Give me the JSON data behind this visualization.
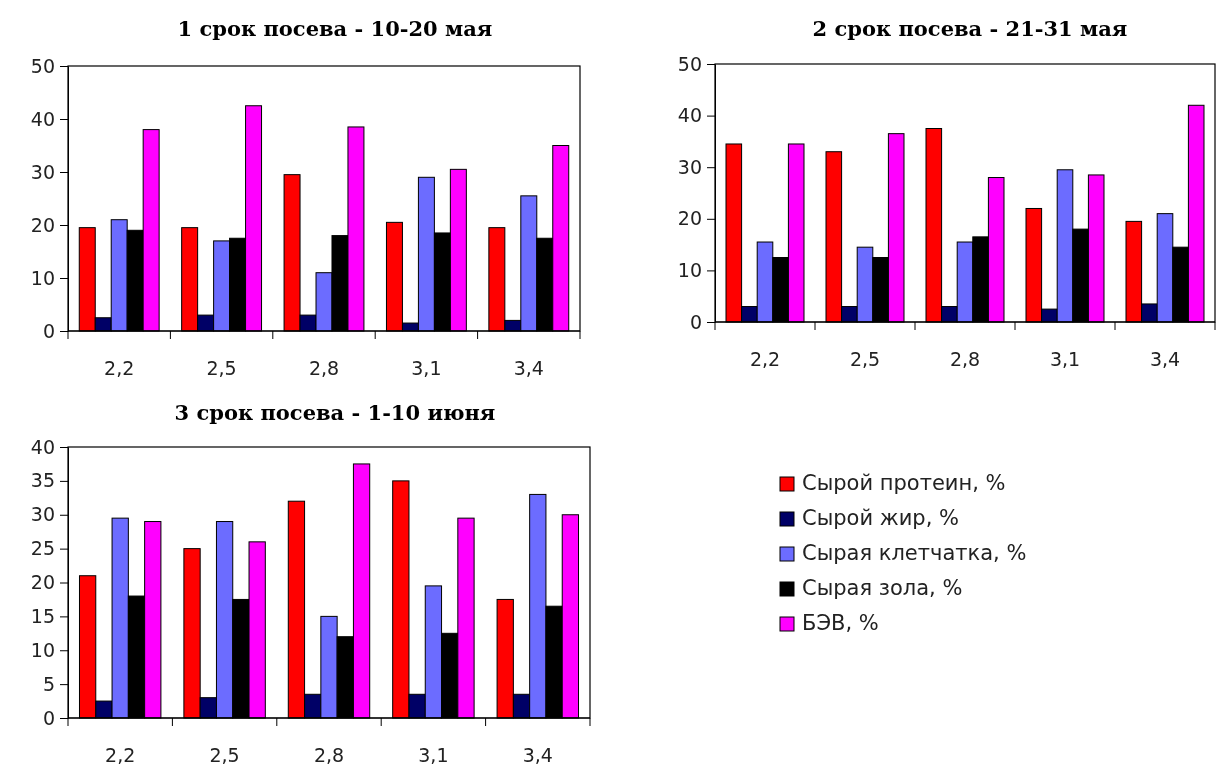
{
  "chart_data": [
    {
      "type": "bar",
      "title": "1 срок посева - 10-20 мая",
      "categories": [
        "2,2",
        "2,5",
        "2,8",
        "3,1",
        "3,4"
      ],
      "ylim": [
        0,
        50
      ],
      "yticks": [
        0,
        10,
        20,
        30,
        40,
        50
      ],
      "legend": false,
      "series": [
        {
          "color": "#ff0000",
          "values": [
            19.5,
            19.5,
            29.5,
            20.5,
            19.5
          ]
        },
        {
          "color": "#000066",
          "values": [
            2.5,
            3,
            3,
            1.5,
            2
          ]
        },
        {
          "color": "#6c6cff",
          "values": [
            21,
            17,
            11,
            29,
            25.5
          ]
        },
        {
          "color": "#000000",
          "values": [
            19,
            17.5,
            18,
            18.5,
            17.5
          ]
        },
        {
          "color": "#ff00ff",
          "values": [
            38,
            42.5,
            38.5,
            30.5,
            35
          ]
        }
      ]
    },
    {
      "type": "bar",
      "title": "2 срок посева - 21-31 мая",
      "categories": [
        "2,2",
        "2,5",
        "2,8",
        "3,1",
        "3,4"
      ],
      "ylim": [
        0,
        50
      ],
      "yticks": [
        0,
        10,
        20,
        30,
        40,
        50
      ],
      "legend": false,
      "series": [
        {
          "color": "#ff0000",
          "values": [
            34.5,
            33,
            37.5,
            22,
            19.5
          ]
        },
        {
          "color": "#000066",
          "values": [
            3,
            3,
            3,
            2.5,
            3.5
          ]
        },
        {
          "color": "#6c6cff",
          "values": [
            15.5,
            14.5,
            15.5,
            29.5,
            21
          ]
        },
        {
          "color": "#000000",
          "values": [
            12.5,
            12.5,
            16.5,
            18,
            14.5
          ]
        },
        {
          "color": "#ff00ff",
          "values": [
            34.5,
            36.5,
            28,
            28.5,
            42
          ]
        }
      ]
    },
    {
      "type": "bar",
      "title": "3 срок посева - 1-10 июня",
      "categories": [
        "2,2",
        "2,5",
        "2,8",
        "3,1",
        "3,4"
      ],
      "ylim": [
        0,
        40
      ],
      "yticks": [
        0,
        5,
        10,
        15,
        20,
        25,
        30,
        35,
        40
      ],
      "legend": "right",
      "series": [
        {
          "name": "Сырой протеин, %",
          "color": "#ff0000",
          "values": [
            21,
            25,
            32,
            35,
            17.5
          ]
        },
        {
          "name": "Сырой жир, %",
          "color": "#000066",
          "values": [
            2.5,
            3,
            3.5,
            3.5,
            3.5
          ]
        },
        {
          "name": "Сырая клетчатка, %",
          "color": "#6c6cff",
          "values": [
            29.5,
            29,
            15,
            19.5,
            33
          ]
        },
        {
          "name": "Сырая зола, %",
          "color": "#000000",
          "values": [
            18,
            17.5,
            12,
            12.5,
            16.5
          ]
        },
        {
          "name": "БЭВ, %",
          "color": "#ff00ff",
          "values": [
            29,
            26,
            37.5,
            29.5,
            30
          ]
        }
      ]
    }
  ]
}
